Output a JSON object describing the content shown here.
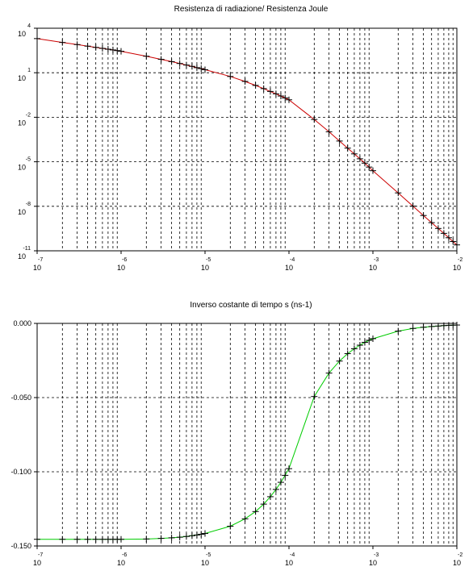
{
  "colors": {
    "top_series": "#cc0000",
    "bottom_series": "#00cc00",
    "marker": "#000000",
    "grid": "#000000",
    "background": "#ffffff"
  },
  "chart_data": [
    {
      "type": "line",
      "title": "Resistenza di radiazione/ Resistenza Joule",
      "xscale": "log",
      "yscale": "log",
      "xlim": [
        1e-07,
        0.01
      ],
      "ylim": [
        1e-11,
        10000.0
      ],
      "grid": true,
      "x_ticks": [
        {
          "base": "10",
          "exp": "-7",
          "value": 1e-07
        },
        {
          "base": "10",
          "exp": "-6",
          "value": 1e-06
        },
        {
          "base": "10",
          "exp": "-5",
          "value": 1e-05
        },
        {
          "base": "10",
          "exp": "-4",
          "value": 0.0001
        },
        {
          "base": "10",
          "exp": "-3",
          "value": 0.001
        },
        {
          "base": "10",
          "exp": "-2",
          "value": 0.01
        }
      ],
      "y_ticks": [
        {
          "base": "10",
          "exp": "4",
          "value": 10000.0
        },
        {
          "base": "10",
          "exp": "1",
          "value": 10.0
        },
        {
          "base": "10",
          "exp": "-2",
          "value": 0.01
        },
        {
          "base": "10",
          "exp": "-5",
          "value": 1e-05
        },
        {
          "base": "10",
          "exp": "-8",
          "value": 1e-08
        },
        {
          "base": "10",
          "exp": "-11",
          "value": 1e-11
        }
      ],
      "series": [
        {
          "x": [
            1e-07,
            2e-07,
            3e-07,
            4e-07,
            5e-07,
            6e-07,
            7e-07,
            8e-07,
            9e-07,
            1e-06,
            2e-06,
            3e-06,
            4e-06,
            5e-06,
            6e-06,
            7e-06,
            8e-06,
            9e-06,
            1e-05,
            2e-05,
            3e-05,
            4e-05,
            5e-05,
            6e-05,
            7e-05,
            8e-05,
            9e-05,
            0.0001,
            0.0002,
            0.0003,
            0.0004,
            0.0005,
            0.0006,
            0.0007,
            0.0008,
            0.0009,
            0.001,
            0.002,
            0.003,
            0.004,
            0.005,
            0.006,
            0.007,
            0.008,
            0.009,
            0.01
          ],
          "y": [
            2000,
            1100,
            790,
            620,
            510,
            440,
            385,
            345,
            310,
            280,
            130,
            80,
            56,
            42,
            33,
            27,
            22,
            19,
            16,
            5.6,
            2.6,
            1.4,
            0.85,
            0.55,
            0.38,
            0.27,
            0.2,
            0.15,
            0.0071,
            0.00105,
            0.00025,
            8.3e-05,
            3.4e-05,
            1.59e-05,
            8.1e-06,
            4.4e-06,
            2.5e-06,
            8e-08,
            1.03e-08,
            2.4e-09,
            7.9e-10,
            3.2e-10,
            1.5e-10,
            7.6e-11,
            4.2e-11,
            2.5e-11
          ]
        }
      ]
    },
    {
      "type": "line",
      "title": "Inverso costante di tempo s (ns-1)",
      "xscale": "log",
      "yscale": "linear",
      "xlim": [
        1e-07,
        0.01
      ],
      "ylim": [
        -0.15,
        0.0
      ],
      "grid": true,
      "x_ticks": [
        {
          "base": "10",
          "exp": "-7",
          "value": 1e-07
        },
        {
          "base": "10",
          "exp": "-6",
          "value": 1e-06
        },
        {
          "base": "10",
          "exp": "-5",
          "value": 1e-05
        },
        {
          "base": "10",
          "exp": "-4",
          "value": 0.0001
        },
        {
          "base": "10",
          "exp": "-3",
          "value": 0.001
        },
        {
          "base": "10",
          "exp": "-2",
          "value": 0.01
        }
      ],
      "y_ticks": [
        {
          "label": "0.000",
          "value": 0.0
        },
        {
          "label": "-0.050",
          "value": -0.05
        },
        {
          "label": "-0.100",
          "value": -0.1
        },
        {
          "label": "-0.150",
          "value": -0.15
        }
      ],
      "series": [
        {
          "x": [
            1e-07,
            2e-07,
            3e-07,
            4e-07,
            5e-07,
            6e-07,
            7e-07,
            8e-07,
            9e-07,
            1e-06,
            2e-06,
            3e-06,
            4e-06,
            5e-06,
            6e-06,
            7e-06,
            8e-06,
            9e-06,
            1e-05,
            2e-05,
            3e-05,
            4e-05,
            5e-05,
            6e-05,
            7e-05,
            8e-05,
            9e-05,
            0.0001,
            0.0002,
            0.0003,
            0.0004,
            0.0005,
            0.0006,
            0.0007,
            0.0008,
            0.0009,
            0.001,
            0.002,
            0.003,
            0.004,
            0.005,
            0.006,
            0.007,
            0.008,
            0.009,
            0.01
          ],
          "y": [
            -0.1455,
            -0.1455,
            -0.1455,
            -0.1455,
            -0.1455,
            -0.1455,
            -0.1455,
            -0.1455,
            -0.1455,
            -0.1455,
            -0.1453,
            -0.1449,
            -0.1445,
            -0.1441,
            -0.1436,
            -0.1431,
            -0.1426,
            -0.1421,
            -0.1416,
            -0.1367,
            -0.1317,
            -0.1268,
            -0.1218,
            -0.1168,
            -0.1119,
            -0.1071,
            -0.1024,
            -0.0979,
            -0.0493,
            -0.0335,
            -0.0254,
            -0.0204,
            -0.0171,
            -0.0147,
            -0.0128,
            -0.0114,
            -0.0103,
            -0.0052,
            -0.0034,
            -0.0026,
            -0.0021,
            -0.0018,
            -0.0015,
            -0.0013,
            -0.0012,
            -0.0011
          ]
        }
      ]
    }
  ]
}
